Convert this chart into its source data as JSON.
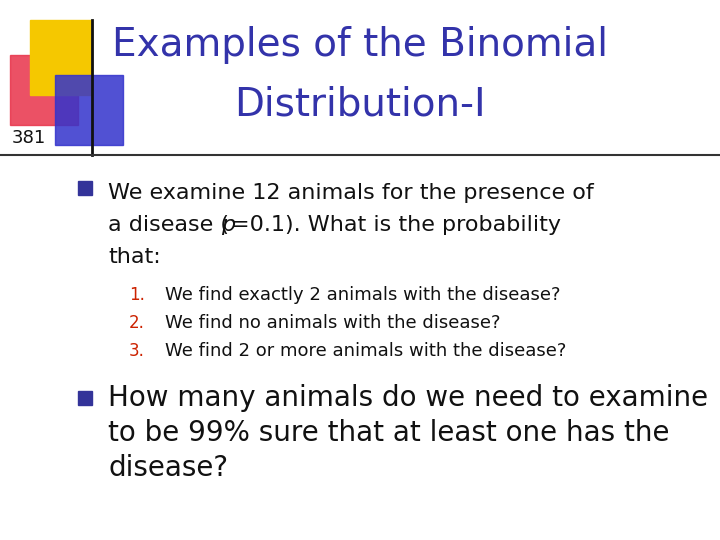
{
  "title_line1": "Examples of the Binomial",
  "title_line2": "Distribution-I",
  "title_color": "#3333aa",
  "slide_number": "381",
  "bg_color": "#ffffff",
  "sub1": "We find exactly 2 animals with the disease?",
  "sub2": "We find no animals with the disease?",
  "sub3": "We find 2 or more animals with the disease?",
  "bullet2_line1": "How many animals do we need to examine",
  "bullet2_line2": "to be 99% sure that at least one has the",
  "bullet2_line3": "disease?",
  "num_color": "#cc2200",
  "title_fontsize": 28,
  "body_fontsize": 16,
  "sub_fontsize": 13,
  "b2_fontsize": 20,
  "slide_num_fontsize": 13
}
